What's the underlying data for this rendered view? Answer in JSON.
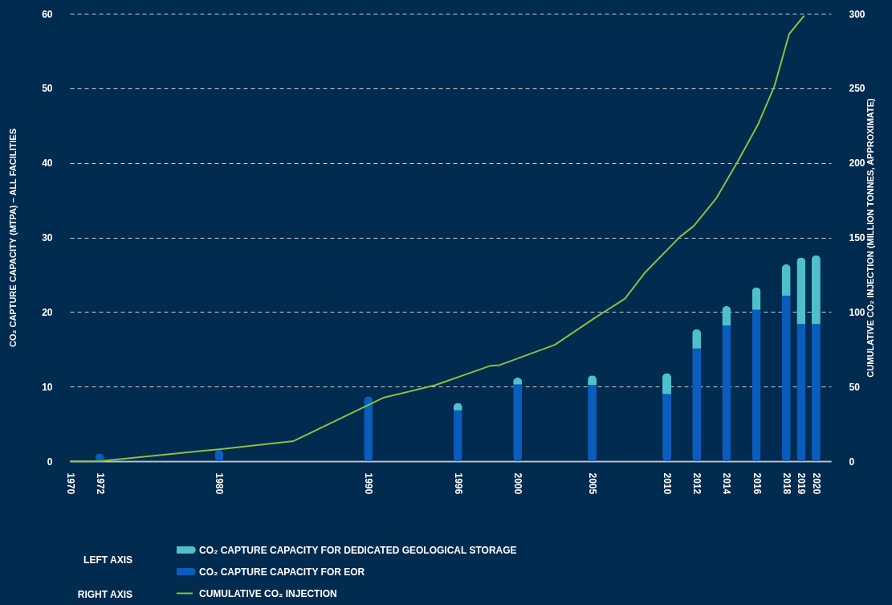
{
  "chart_data": {
    "type": "bar",
    "stacked": true,
    "xlabel": null,
    "ylabel": "CO₂ CAPTURE CAPACITY (MTPA) – ALL FACILITIES",
    "y2label": "CUMULATIVE CO₂ INJECTION (MILLION TONNES, APPROXIMATE)",
    "x": [
      1972,
      1980,
      1990,
      1996,
      2000,
      2005,
      2010,
      2012,
      2014,
      2016,
      2018,
      2019,
      2020
    ],
    "series": [
      {
        "name": "CO₂ CAPTURE CAPACITY FOR EOR",
        "color": "#0a5cbd",
        "values": [
          1,
          1.5,
          8.7,
          6.8,
          10.3,
          10.2,
          9,
          15.1,
          18.2,
          20.3,
          22.2,
          18.4,
          18.4
        ]
      },
      {
        "name": "CO₂ CAPTURE CAPACITY FOR DEDICATED GEOLOGICAL STORAGE",
        "color": "#4fc0cb",
        "values": [
          0,
          0,
          0,
          1,
          0.9,
          1.3,
          2.8,
          2.6,
          2.6,
          3,
          4.2,
          8.9,
          9.2
        ]
      },
      {
        "name": "CUMULATIVE CO₂ INJECTION",
        "type": "line",
        "axis": "y2",
        "color": "#8cbf3f",
        "x": [
          1970,
          1972,
          1980,
          1985,
          1991,
          1994.5,
          1996.7,
          1998.2,
          1998.8,
          2002.5,
          2005.1,
          2007.2,
          2008.5,
          2010.9,
          2011.8,
          2013.3,
          2014.7,
          2016.1,
          2017.2,
          2018.2,
          2019.2
        ],
        "values": [
          0,
          0,
          8,
          13.5,
          42.5,
          51,
          58.8,
          64,
          64.4,
          78,
          95.5,
          109,
          126,
          150.6,
          157.6,
          176,
          200,
          225.5,
          251,
          286.4,
          298.6
        ]
      }
    ],
    "xlim": [
      1970,
      2021
    ],
    "xticks": [
      1970,
      1972,
      1980,
      1990,
      1996,
      2000,
      2005,
      2010,
      2012,
      2014,
      2016,
      2018,
      2019,
      2020
    ],
    "ylim": [
      0,
      60
    ],
    "yticks": [
      0,
      10,
      20,
      30,
      40,
      50,
      60
    ],
    "y2lim": [
      0,
      300
    ],
    "y2ticks": [
      0,
      50,
      100,
      150,
      200,
      250,
      300
    ],
    "grid": "y",
    "legend": "bottom left",
    "annotations": [
      "LEFT AXIS",
      "RIGHT AXIS"
    ]
  }
}
